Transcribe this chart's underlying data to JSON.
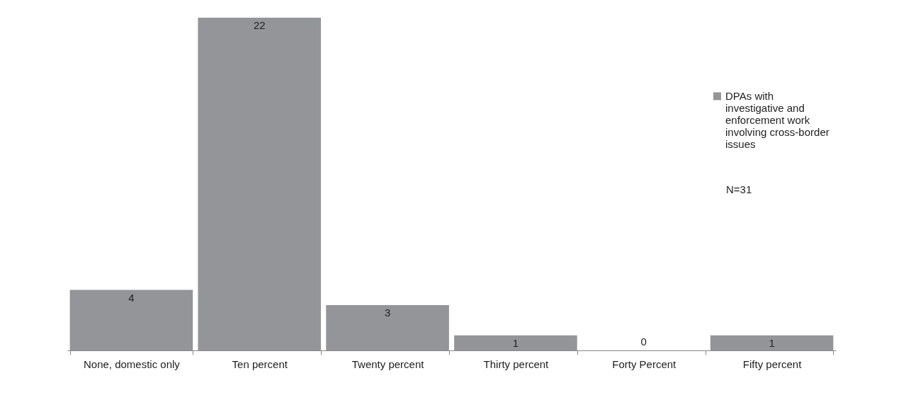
{
  "chart_data": {
    "type": "bar",
    "categories": [
      "None, domestic only",
      "Ten percent",
      "Twenty percent",
      "Thirty percent",
      "Forty Percent",
      "Fifty percent"
    ],
    "series": [
      {
        "name": "DPAs with investigative and enforcement work involving cross-border issues",
        "color": "#939598",
        "values": [
          4,
          22,
          3,
          1,
          0,
          1
        ]
      }
    ],
    "data_labels": true,
    "legend": "right",
    "grid": false,
    "tick_labels": "x",
    "annotations": [
      "N=31"
    ]
  }
}
